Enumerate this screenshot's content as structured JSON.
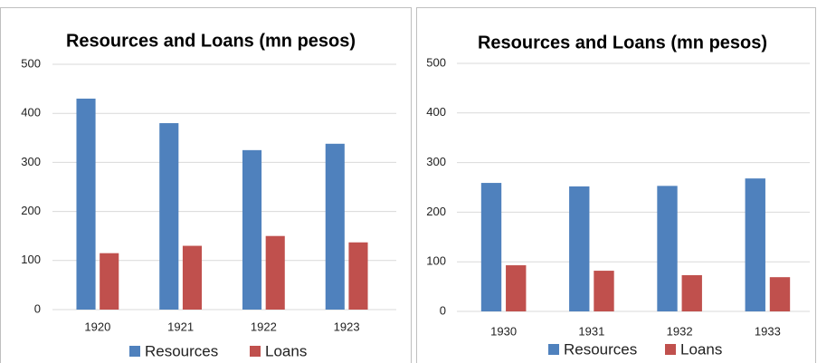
{
  "chart_data": [
    {
      "type": "bar",
      "title": "Resources and Loans (mn pesos)",
      "categories": [
        "1920",
        "1921",
        "1922",
        "1923"
      ],
      "series": [
        {
          "name": "Resources",
          "color": "#4f81bd",
          "values": [
            430,
            380,
            325,
            338
          ]
        },
        {
          "name": "Loans",
          "color": "#c0504d",
          "values": [
            115,
            130,
            150,
            137
          ]
        }
      ],
      "ylim": [
        0,
        500
      ],
      "yticks": [
        0,
        100,
        200,
        300,
        400,
        500
      ],
      "grid": true,
      "legend": "bottom"
    },
    {
      "type": "bar",
      "title": "Resources and Loans (mn pesos)",
      "categories": [
        "1930",
        "1931",
        "1932",
        "1933"
      ],
      "series": [
        {
          "name": "Resources",
          "color": "#4f81bd",
          "values": [
            259,
            252,
            253,
            268
          ]
        },
        {
          "name": "Loans",
          "color": "#c0504d",
          "values": [
            93,
            82,
            73,
            69
          ]
        }
      ],
      "ylim": [
        0,
        500
      ],
      "yticks": [
        0,
        100,
        200,
        300,
        400,
        500
      ],
      "grid": true,
      "legend": "bottom"
    }
  ]
}
